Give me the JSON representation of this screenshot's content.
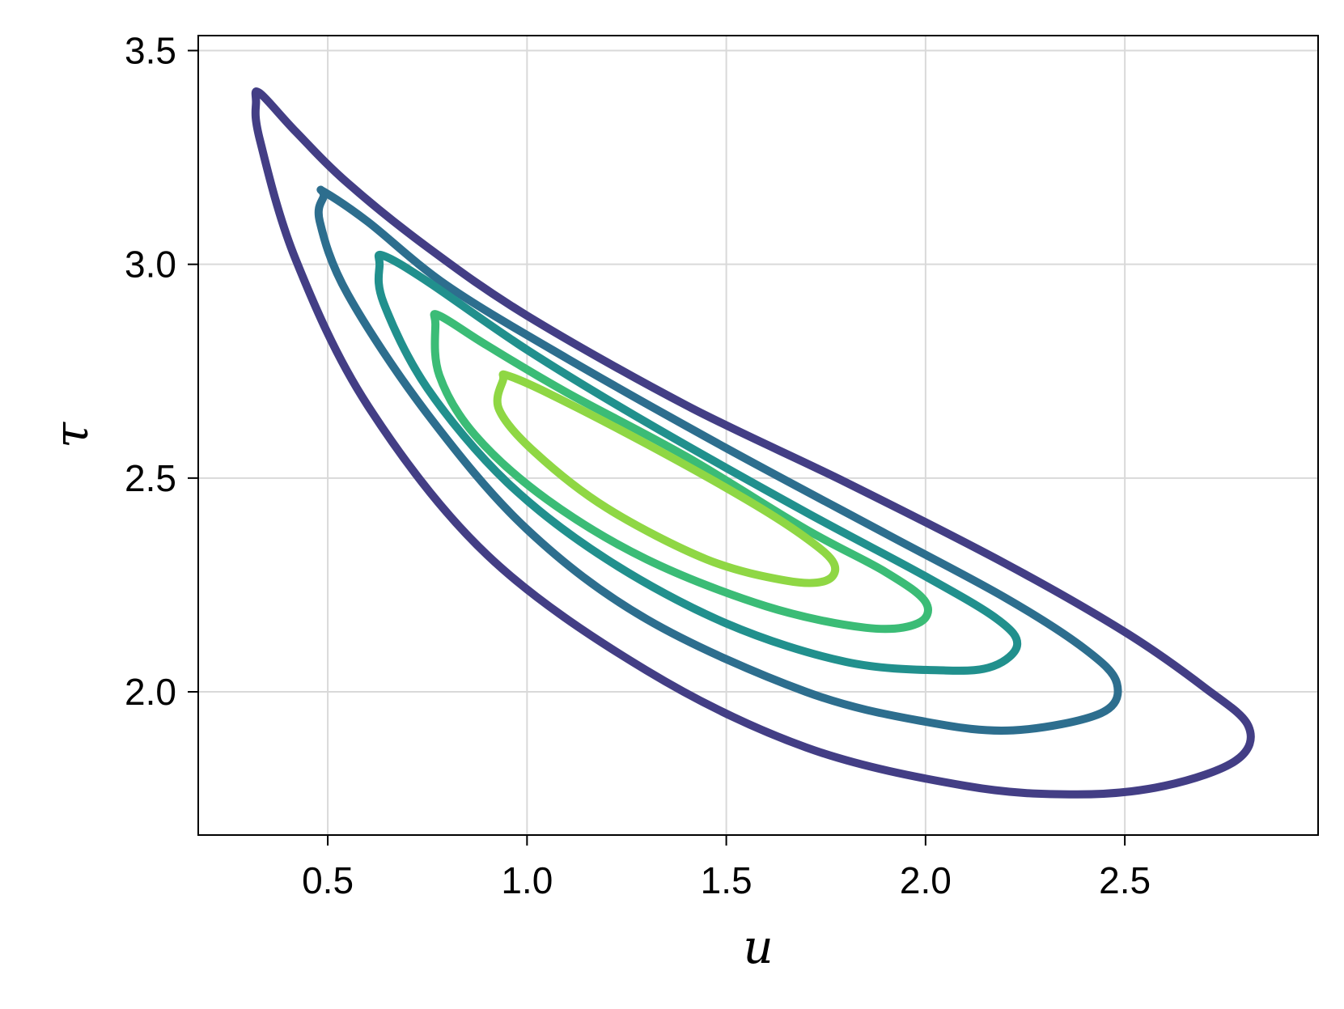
{
  "chart_data": {
    "type": "contour",
    "xlabel": "u",
    "ylabel": "τ",
    "xlim": [
      0.175,
      2.985
    ],
    "ylim": [
      1.665,
      3.535
    ],
    "xticks": [
      {
        "value": 0.5,
        "label": "0.5"
      },
      {
        "value": 1.0,
        "label": "1.0"
      },
      {
        "value": 1.5,
        "label": "1.5"
      },
      {
        "value": 2.0,
        "label": "2.0"
      },
      {
        "value": 2.5,
        "label": "2.5"
      }
    ],
    "yticks": [
      {
        "value": 2.0,
        "label": "2.0"
      },
      {
        "value": 2.5,
        "label": "2.5"
      },
      {
        "value": 3.0,
        "label": "3.0"
      },
      {
        "value": 3.5,
        "label": "3.5"
      }
    ],
    "grid": true,
    "legend": "none",
    "levels": [
      {
        "color": "#433e85",
        "points": [
          [
            0.33,
            3.4
          ],
          [
            0.42,
            3.31
          ],
          [
            0.55,
            3.19
          ],
          [
            0.75,
            3.04
          ],
          [
            1.0,
            2.88
          ],
          [
            1.4,
            2.67
          ],
          [
            1.8,
            2.49
          ],
          [
            2.2,
            2.3
          ],
          [
            2.5,
            2.14
          ],
          [
            2.7,
            2.01
          ],
          [
            2.81,
            1.92
          ],
          [
            2.78,
            1.84
          ],
          [
            2.6,
            1.78
          ],
          [
            2.38,
            1.76
          ],
          [
            2.1,
            1.78
          ],
          [
            1.7,
            1.87
          ],
          [
            1.3,
            2.05
          ],
          [
            0.9,
            2.32
          ],
          [
            0.6,
            2.67
          ],
          [
            0.42,
            3.01
          ],
          [
            0.33,
            3.29
          ],
          [
            0.32,
            3.38
          ]
        ]
      },
      {
        "color": "#2d6e8e",
        "points": [
          [
            0.49,
            3.17
          ],
          [
            0.6,
            3.1
          ],
          [
            0.8,
            2.95
          ],
          [
            1.1,
            2.78
          ],
          [
            1.5,
            2.57
          ],
          [
            1.9,
            2.37
          ],
          [
            2.2,
            2.22
          ],
          [
            2.4,
            2.1
          ],
          [
            2.48,
            2.02
          ],
          [
            2.44,
            1.95
          ],
          [
            2.22,
            1.91
          ],
          [
            2.0,
            1.93
          ],
          [
            1.7,
            2.0
          ],
          [
            1.3,
            2.17
          ],
          [
            1.0,
            2.38
          ],
          [
            0.75,
            2.65
          ],
          [
            0.55,
            2.93
          ],
          [
            0.48,
            3.1
          ],
          [
            0.49,
            3.16
          ]
        ]
      },
      {
        "color": "#21908d",
        "points": [
          [
            0.64,
            3.02
          ],
          [
            0.75,
            2.96
          ],
          [
            1.0,
            2.8
          ],
          [
            1.3,
            2.63
          ],
          [
            1.7,
            2.42
          ],
          [
            2.0,
            2.27
          ],
          [
            2.18,
            2.17
          ],
          [
            2.23,
            2.11
          ],
          [
            2.17,
            2.06
          ],
          [
            2.05,
            2.05
          ],
          [
            1.8,
            2.07
          ],
          [
            1.5,
            2.16
          ],
          [
            1.2,
            2.31
          ],
          [
            0.95,
            2.49
          ],
          [
            0.75,
            2.71
          ],
          [
            0.64,
            2.91
          ],
          [
            0.63,
            3.0
          ]
        ]
      },
      {
        "color": "#3bbc76",
        "points": [
          [
            0.78,
            2.88
          ],
          [
            0.9,
            2.81
          ],
          [
            1.1,
            2.7
          ],
          [
            1.4,
            2.55
          ],
          [
            1.7,
            2.38
          ],
          [
            1.9,
            2.28
          ],
          [
            2.0,
            2.21
          ],
          [
            1.98,
            2.16
          ],
          [
            1.85,
            2.15
          ],
          [
            1.6,
            2.2
          ],
          [
            1.3,
            2.31
          ],
          [
            1.05,
            2.45
          ],
          [
            0.87,
            2.6
          ],
          [
            0.78,
            2.74
          ],
          [
            0.77,
            2.86
          ]
        ]
      },
      {
        "color": "#8fd744",
        "points": [
          [
            0.95,
            2.74
          ],
          [
            1.05,
            2.7
          ],
          [
            1.3,
            2.58
          ],
          [
            1.55,
            2.45
          ],
          [
            1.7,
            2.36
          ],
          [
            1.77,
            2.3
          ],
          [
            1.75,
            2.26
          ],
          [
            1.65,
            2.26
          ],
          [
            1.45,
            2.31
          ],
          [
            1.2,
            2.43
          ],
          [
            1.02,
            2.56
          ],
          [
            0.93,
            2.66
          ],
          [
            0.94,
            2.73
          ]
        ]
      }
    ]
  }
}
